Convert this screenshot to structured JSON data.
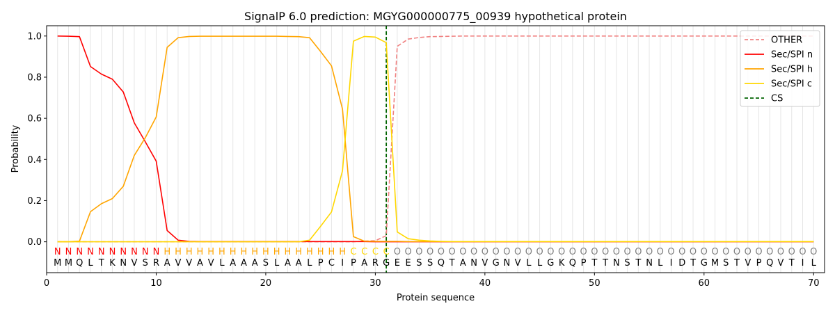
{
  "chart_data": {
    "type": "line",
    "title": "SignalP 6.0 prediction: MGYG000000775_00939 hypothetical protein",
    "xlabel": "Protein sequence",
    "ylabel": "Probability",
    "xlim": [
      0,
      71
    ],
    "ylim": [
      -0.15,
      1.05
    ],
    "xticks": [
      0,
      10,
      20,
      30,
      40,
      50,
      60,
      70
    ],
    "yticks": [
      "0.0",
      "0.2",
      "0.4",
      "0.6",
      "0.8",
      "1.0"
    ],
    "grid": "vertical lines at each residue",
    "legend_position": "top-right",
    "sequence": [
      "M",
      "M",
      "Q",
      "L",
      "T",
      "K",
      "N",
      "V",
      "S",
      "R",
      "A",
      "V",
      "V",
      "A",
      "V",
      "L",
      "A",
      "A",
      "A",
      "S",
      "L",
      "A",
      "A",
      "L",
      "P",
      "C",
      "I",
      "P",
      "A",
      "R",
      "G",
      "E",
      "E",
      "S",
      "S",
      "Q",
      "T",
      "A",
      "N",
      "V",
      "G",
      "N",
      "V",
      "L",
      "L",
      "G",
      "K",
      "Q",
      "P",
      "T",
      "T",
      "N",
      "S",
      "T",
      "N",
      "L",
      "I",
      "D",
      "T",
      "G",
      "M",
      "S",
      "T",
      "V",
      "P",
      "Q",
      "V",
      "T",
      "I",
      "L"
    ],
    "region_labels": [
      "N",
      "N",
      "N",
      "N",
      "N",
      "N",
      "N",
      "N",
      "N",
      "N",
      "H",
      "H",
      "H",
      "H",
      "H",
      "H",
      "H",
      "H",
      "H",
      "H",
      "H",
      "H",
      "H",
      "H",
      "H",
      "H",
      "H",
      "C",
      "C",
      "C",
      "C",
      "O",
      "O",
      "O",
      "O",
      "O",
      "O",
      "O",
      "O",
      "O",
      "O",
      "O",
      "O",
      "O",
      "O",
      "O",
      "O",
      "O",
      "O",
      "O",
      "O",
      "O",
      "O",
      "O",
      "O",
      "O",
      "O",
      "O",
      "O",
      "O",
      "O",
      "O",
      "O",
      "O",
      "O",
      "O",
      "O",
      "O",
      "O",
      "O"
    ],
    "region_colors": {
      "N": "#ff0000",
      "H": "#ffa500",
      "C": "#ffd700",
      "O": "#808080"
    },
    "series": [
      {
        "name": "OTHER",
        "color": "#f08080",
        "style": "dashed",
        "x": [
          1,
          2,
          3,
          4,
          5,
          6,
          7,
          8,
          9,
          10,
          11,
          12,
          13,
          14,
          15,
          16,
          17,
          18,
          19,
          20,
          21,
          22,
          23,
          24,
          25,
          26,
          27,
          28,
          29,
          30,
          31,
          32,
          33,
          34,
          35,
          36,
          37,
          38,
          39,
          40,
          41,
          42,
          43,
          44,
          45,
          46,
          47,
          48,
          49,
          50,
          51,
          52,
          53,
          54,
          55,
          56,
          57,
          58,
          59,
          60,
          61,
          62,
          63,
          64,
          65,
          66,
          67,
          68,
          69,
          70
        ],
        "values": [
          0,
          0,
          0,
          0,
          0,
          0,
          0,
          0,
          0,
          0,
          0,
          0,
          0,
          0,
          0,
          0,
          0,
          0,
          0,
          0,
          0,
          0,
          0,
          0,
          0,
          0,
          0,
          0,
          0.003,
          0.005,
          0.03,
          0.95,
          0.985,
          0.993,
          0.997,
          0.998,
          0.999,
          1,
          1,
          1,
          1,
          1,
          1,
          1,
          1,
          1,
          1,
          1,
          1,
          1,
          1,
          1,
          1,
          1,
          1,
          1,
          1,
          1,
          1,
          1,
          1,
          1,
          1,
          1,
          1,
          1,
          1,
          1,
          1,
          1
        ]
      },
      {
        "name": "Sec/SPI n",
        "color": "#ff0000",
        "style": "solid",
        "x": [
          1,
          2,
          3,
          4,
          5,
          6,
          7,
          8,
          9,
          10,
          11,
          12,
          13,
          14,
          15,
          16,
          17,
          18,
          19,
          20,
          21,
          22,
          23,
          24,
          25,
          26,
          27,
          28,
          29,
          30,
          31,
          32,
          33,
          34,
          35,
          36,
          37,
          38,
          39,
          40,
          41,
          42,
          43,
          44,
          45,
          46,
          47,
          48,
          49,
          50,
          51,
          52,
          53,
          54,
          55,
          56,
          57,
          58,
          59,
          60,
          61,
          62,
          63,
          64,
          65,
          66,
          67,
          68,
          69,
          70
        ],
        "values": [
          1.0,
          0.999,
          0.997,
          0.852,
          0.815,
          0.79,
          0.728,
          0.578,
          0.487,
          0.392,
          0.055,
          0.008,
          0.002,
          0.001,
          0.001,
          0.001,
          0.001,
          0.001,
          0.001,
          0.001,
          0.001,
          0.001,
          0.001,
          0.001,
          0.001,
          0.001,
          0.001,
          0.001,
          0.001,
          0,
          0,
          0,
          0,
          0,
          0,
          0,
          0,
          0,
          0,
          0,
          0,
          0,
          0,
          0,
          0,
          0,
          0,
          0,
          0,
          0,
          0,
          0,
          0,
          0,
          0,
          0,
          0,
          0,
          0,
          0,
          0,
          0,
          0,
          0,
          0,
          0,
          0,
          0,
          0,
          0
        ]
      },
      {
        "name": "Sec/SPI h",
        "color": "#ffa500",
        "style": "solid",
        "x": [
          1,
          2,
          3,
          4,
          5,
          6,
          7,
          8,
          9,
          10,
          11,
          12,
          13,
          14,
          15,
          16,
          17,
          18,
          19,
          20,
          21,
          22,
          23,
          24,
          25,
          26,
          27,
          28,
          29,
          30,
          31,
          32,
          33,
          34,
          35,
          36,
          37,
          38,
          39,
          40,
          41,
          42,
          43,
          44,
          45,
          46,
          47,
          48,
          49,
          50,
          51,
          52,
          53,
          54,
          55,
          56,
          57,
          58,
          59,
          60,
          61,
          62,
          63,
          64,
          65,
          66,
          67,
          68,
          69,
          70
        ],
        "values": [
          0,
          0,
          0.003,
          0.146,
          0.185,
          0.21,
          0.27,
          0.42,
          0.505,
          0.607,
          0.945,
          0.992,
          0.998,
          0.999,
          0.999,
          0.999,
          0.999,
          0.999,
          0.999,
          0.999,
          0.999,
          0.998,
          0.997,
          0.992,
          0.925,
          0.855,
          0.645,
          0.025,
          0.003,
          0.002,
          0.002,
          0.002,
          0.001,
          0.001,
          0.001,
          0.001,
          0.001,
          0.001,
          0.001,
          0.001,
          0.001,
          0.001,
          0.001,
          0.001,
          0.001,
          0.001,
          0.001,
          0.001,
          0.001,
          0.001,
          0.001,
          0.001,
          0.001,
          0.001,
          0.001,
          0.001,
          0.001,
          0.001,
          0.001,
          0.001,
          0.001,
          0.001,
          0.001,
          0.001,
          0.001,
          0.001,
          0.001,
          0.001,
          0.001,
          0.001
        ]
      },
      {
        "name": "Sec/SPI c",
        "color": "#ffd700",
        "style": "solid",
        "x": [
          1,
          2,
          3,
          4,
          5,
          6,
          7,
          8,
          9,
          10,
          11,
          12,
          13,
          14,
          15,
          16,
          17,
          18,
          19,
          20,
          21,
          22,
          23,
          24,
          25,
          26,
          27,
          28,
          29,
          30,
          31,
          32,
          33,
          34,
          35,
          36,
          37,
          38,
          39,
          40,
          41,
          42,
          43,
          44,
          45,
          46,
          47,
          48,
          49,
          50,
          51,
          52,
          53,
          54,
          55,
          56,
          57,
          58,
          59,
          60,
          61,
          62,
          63,
          64,
          65,
          66,
          67,
          68,
          69,
          70
        ],
        "values": [
          0,
          0,
          0,
          0,
          0,
          0,
          0,
          0,
          0,
          0,
          0,
          0,
          0,
          0,
          0,
          0,
          0,
          0,
          0,
          0,
          0,
          0,
          0,
          0.008,
          0.075,
          0.145,
          0.345,
          0.975,
          0.998,
          0.995,
          0.968,
          0.048,
          0.015,
          0.008,
          0.004,
          0.002,
          0.001,
          0.001,
          0.001,
          0.001,
          0.001,
          0.001,
          0.001,
          0.001,
          0.001,
          0.001,
          0.001,
          0.001,
          0.001,
          0.001,
          0.001,
          0.001,
          0.001,
          0.001,
          0.001,
          0.001,
          0.001,
          0.001,
          0.001,
          0.001,
          0.001,
          0.001,
          0.001,
          0.001,
          0.001,
          0.001,
          0.001,
          0.001,
          0.001,
          0.001
        ]
      }
    ],
    "cleavage_site": {
      "name": "CS",
      "x": 31,
      "color": "#006400",
      "style": "dashed"
    },
    "legend": [
      "OTHER",
      "Sec/SPI n",
      "Sec/SPI h",
      "Sec/SPI c",
      "CS"
    ]
  }
}
